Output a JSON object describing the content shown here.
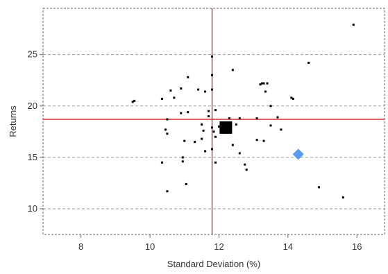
{
  "chart_data": {
    "type": "scatter",
    "title": "",
    "xlabel": "Standard Deviation (%)",
    "ylabel": "Returns",
    "xlim": [
      6.9,
      16.8
    ],
    "ylim": [
      7.5,
      29.5
    ],
    "xticks": [
      8,
      10,
      12,
      14,
      16
    ],
    "yticks": [
      10,
      15,
      20,
      25
    ],
    "grid": {
      "horizontal": true,
      "vertical": false,
      "style": "dashed"
    },
    "reference_lines": {
      "x": 11.8,
      "y": 18.7,
      "color": "#cc0000"
    },
    "colors": {
      "points": "#000000",
      "highlight_square": "#000000",
      "highlight_diamond": "#5b9bef",
      "grid": "#9a9a9a",
      "frame": "#666666"
    },
    "series": [
      {
        "marker": "small-square",
        "points": [
          [
            15.9,
            27.9
          ],
          [
            14.6,
            24.2
          ],
          [
            12.4,
            23.5
          ],
          [
            11.8,
            24.8
          ],
          [
            11.8,
            23.0
          ],
          [
            11.1,
            22.8
          ],
          [
            13.3,
            22.2
          ],
          [
            13.25,
            22.2
          ],
          [
            13.4,
            22.2
          ],
          [
            13.2,
            22.1
          ],
          [
            10.9,
            21.7
          ],
          [
            11.4,
            21.6
          ],
          [
            11.8,
            21.6
          ],
          [
            10.6,
            21.5
          ],
          [
            11.6,
            21.4
          ],
          [
            13.35,
            21.4
          ],
          [
            9.5,
            20.4
          ],
          [
            9.55,
            20.5
          ],
          [
            10.35,
            20.7
          ],
          [
            10.7,
            20.8
          ],
          [
            14.1,
            20.8
          ],
          [
            14.15,
            20.7
          ],
          [
            13.5,
            20.0
          ],
          [
            10.5,
            18.7
          ],
          [
            10.9,
            19.3
          ],
          [
            11.1,
            19.4
          ],
          [
            11.7,
            19.5
          ],
          [
            11.9,
            19.6
          ],
          [
            11.7,
            19.0
          ],
          [
            12.3,
            18.8
          ],
          [
            12.6,
            18.8
          ],
          [
            13.1,
            18.8
          ],
          [
            13.7,
            18.9
          ],
          [
            12.5,
            18.2
          ],
          [
            11.5,
            18.2
          ],
          [
            11.8,
            17.9
          ],
          [
            12.35,
            18.1
          ],
          [
            13.5,
            18.1
          ],
          [
            10.45,
            17.7
          ],
          [
            11.55,
            17.6
          ],
          [
            11.85,
            17.5
          ],
          [
            13.8,
            17.7
          ],
          [
            12.0,
            18.0
          ],
          [
            10.5,
            17.3
          ],
          [
            11.9,
            17.0
          ],
          [
            11.0,
            16.6
          ],
          [
            11.3,
            16.5
          ],
          [
            11.5,
            16.8
          ],
          [
            13.1,
            16.7
          ],
          [
            13.3,
            16.6
          ],
          [
            12.4,
            16.2
          ],
          [
            11.6,
            15.6
          ],
          [
            11.8,
            15.8
          ],
          [
            12.6,
            15.4
          ],
          [
            10.95,
            15.0
          ],
          [
            10.95,
            14.6
          ],
          [
            10.35,
            14.5
          ],
          [
            11.9,
            14.5
          ],
          [
            12.75,
            14.3
          ],
          [
            12.8,
            13.8
          ],
          [
            11.05,
            12.4
          ],
          [
            10.5,
            11.7
          ],
          [
            14.9,
            12.1
          ],
          [
            15.6,
            11.1
          ]
        ]
      },
      {
        "marker": "large-square",
        "points": [
          [
            12.2,
            17.9
          ]
        ]
      },
      {
        "marker": "diamond",
        "points": [
          [
            14.3,
            15.3
          ]
        ]
      }
    ]
  }
}
